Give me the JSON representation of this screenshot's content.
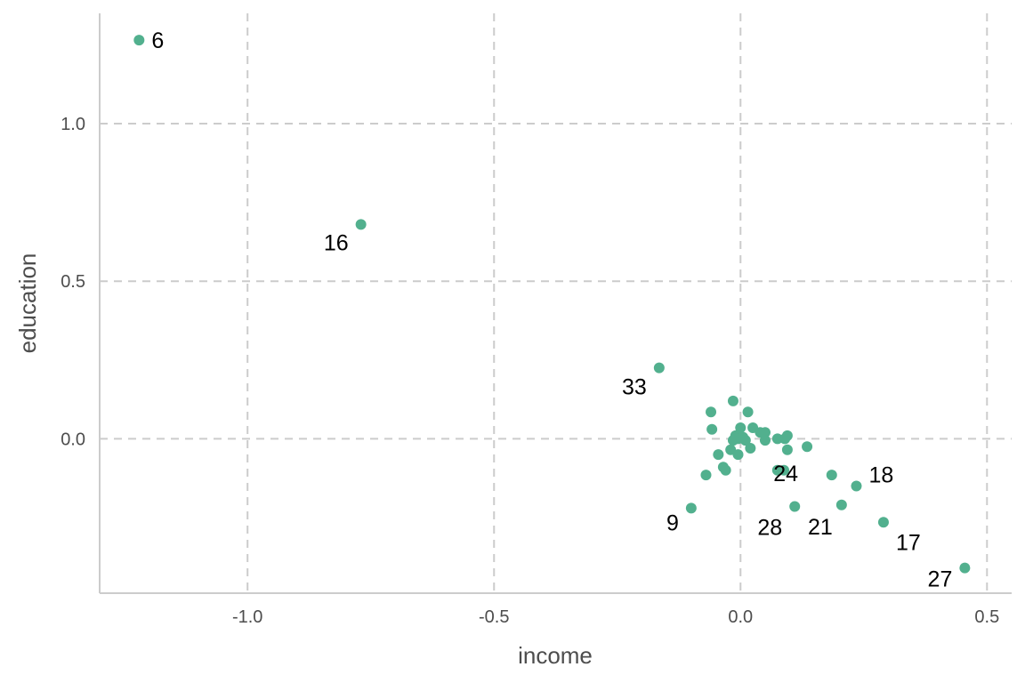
{
  "chart_data": {
    "type": "scatter",
    "xlabel": "income",
    "ylabel": "education",
    "xlim": [
      -1.3,
      0.55
    ],
    "ylim": [
      -0.49,
      1.35
    ],
    "grid": true,
    "x_ticks": [
      {
        "value": -1.0,
        "label": "-1.0"
      },
      {
        "value": -0.5,
        "label": "-0.5"
      },
      {
        "value": 0.0,
        "label": "0.0"
      },
      {
        "value": 0.5,
        "label": "0.5"
      }
    ],
    "y_ticks": [
      {
        "value": 0.0,
        "label": "0.0"
      },
      {
        "value": 0.5,
        "label": "0.5"
      },
      {
        "value": 1.0,
        "label": "1.0"
      }
    ],
    "point_color": "#52b08e",
    "points": [
      {
        "x": -1.22,
        "y": 1.265,
        "label": "6"
      },
      {
        "x": -0.77,
        "y": 0.68,
        "label": "16"
      },
      {
        "x": -0.165,
        "y": 0.225,
        "label": "33"
      },
      {
        "x": -0.1,
        "y": -0.22,
        "label": "9"
      },
      {
        "x": 0.11,
        "y": -0.215,
        "label": "28"
      },
      {
        "x": 0.205,
        "y": -0.21,
        "label": "21"
      },
      {
        "x": 0.135,
        "y": -0.025,
        "label": "24"
      },
      {
        "x": 0.235,
        "y": -0.15,
        "label": "18"
      },
      {
        "x": 0.29,
        "y": -0.265,
        "label": "17"
      },
      {
        "x": 0.455,
        "y": -0.41,
        "label": "27"
      },
      {
        "x": -0.015,
        "y": 0.12,
        "label": ""
      },
      {
        "x": -0.06,
        "y": 0.085,
        "label": ""
      },
      {
        "x": 0.015,
        "y": 0.085,
        "label": ""
      },
      {
        "x": -0.058,
        "y": 0.03,
        "label": ""
      },
      {
        "x": 0.0,
        "y": 0.035,
        "label": ""
      },
      {
        "x": 0.025,
        "y": 0.035,
        "label": ""
      },
      {
        "x": 0.04,
        "y": 0.02,
        "label": ""
      },
      {
        "x": 0.05,
        "y": 0.02,
        "label": ""
      },
      {
        "x": -0.01,
        "y": 0.01,
        "label": ""
      },
      {
        "x": -0.005,
        "y": 0.0,
        "label": ""
      },
      {
        "x": 0.005,
        "y": 0.005,
        "label": ""
      },
      {
        "x": -0.015,
        "y": -0.005,
        "label": ""
      },
      {
        "x": 0.01,
        "y": -0.005,
        "label": ""
      },
      {
        "x": 0.05,
        "y": -0.005,
        "label": ""
      },
      {
        "x": 0.075,
        "y": 0.0,
        "label": ""
      },
      {
        "x": 0.09,
        "y": 0.0,
        "label": ""
      },
      {
        "x": 0.095,
        "y": 0.01,
        "label": ""
      },
      {
        "x": 0.02,
        "y": -0.03,
        "label": ""
      },
      {
        "x": -0.02,
        "y": -0.035,
        "label": ""
      },
      {
        "x": 0.095,
        "y": -0.035,
        "label": ""
      },
      {
        "x": -0.045,
        "y": -0.05,
        "label": ""
      },
      {
        "x": -0.005,
        "y": -0.05,
        "label": ""
      },
      {
        "x": -0.035,
        "y": -0.09,
        "label": ""
      },
      {
        "x": -0.03,
        "y": -0.1,
        "label": ""
      },
      {
        "x": 0.075,
        "y": -0.1,
        "label": ""
      },
      {
        "x": 0.088,
        "y": -0.1,
        "label": ""
      },
      {
        "x": -0.07,
        "y": -0.115,
        "label": ""
      },
      {
        "x": 0.185,
        "y": -0.115,
        "label": ""
      }
    ]
  }
}
